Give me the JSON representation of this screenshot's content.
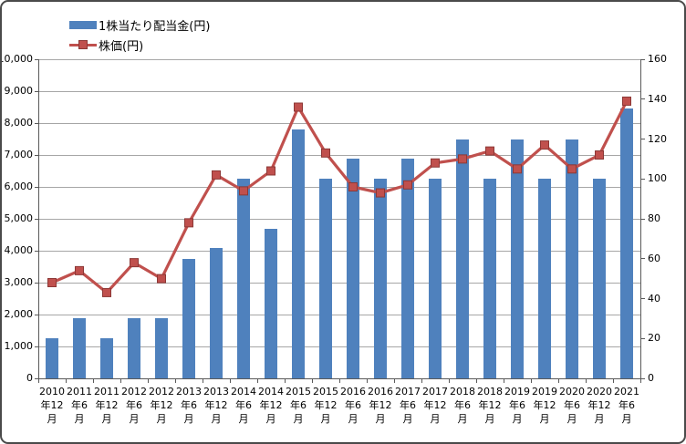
{
  "legend": {
    "items": [
      {
        "label": "1株当たり配当金(円)",
        "series": "dividend",
        "swatch": "bar"
      },
      {
        "label": "株価(円)",
        "series": "price",
        "swatch": "line-marker"
      }
    ]
  },
  "colors": {
    "bar": "#4f81bd",
    "line": "#c0504d",
    "marker_border": "#8c3836",
    "grid": "#a6a6a6",
    "axis": "#595959",
    "text": "#000000",
    "background": "#ffffff"
  },
  "chart_data": {
    "type": "bar",
    "subtype": "combo-bar-line-dual-axis",
    "title": "",
    "categories": [
      "2010年12月",
      "2011年6月",
      "2011年12月",
      "2012年6月",
      "2012年12月",
      "2013年6月",
      "2013年12月",
      "2014年6月",
      "2014年12月",
      "2015年6月",
      "2015年12月",
      "2016年6月",
      "2016年12月",
      "2017年6月",
      "2017年12月",
      "2018年6月",
      "2018年12月",
      "2019年6月",
      "2019年12月",
      "2020年6月",
      "2020年12月",
      "2021年6月"
    ],
    "series": [
      {
        "name": "1株当たり配当金(円)",
        "type": "bar",
        "axis": "left",
        "values": [
          1250,
          1875,
          1250,
          1875,
          1875,
          3750,
          4100,
          6250,
          4700,
          7800,
          6250,
          6900,
          6250,
          6900,
          6250,
          7500,
          6250,
          7500,
          6250,
          7500,
          6250,
          8450
        ]
      },
      {
        "name": "株価(円)",
        "type": "line",
        "axis": "right",
        "values": [
          48,
          54,
          43,
          58,
          50,
          78,
          102,
          94,
          104,
          136,
          113,
          96,
          93,
          97,
          108,
          110,
          114,
          105,
          117,
          105,
          112,
          139
        ]
      }
    ],
    "left_axis": {
      "min": 0,
      "max": 10000,
      "step": 1000,
      "tick_labels": [
        "0",
        "1,000",
        "2,000",
        "3,000",
        "4,000",
        "5,000",
        "6,000",
        "7,000",
        "8,000",
        "9,000",
        "10,000"
      ]
    },
    "right_axis": {
      "min": 0,
      "max": 160,
      "step": 20,
      "tick_labels": [
        "0",
        "20",
        "40",
        "60",
        "80",
        "100",
        "120",
        "140",
        "160"
      ]
    },
    "grid": true,
    "legend_position": "top-left"
  }
}
